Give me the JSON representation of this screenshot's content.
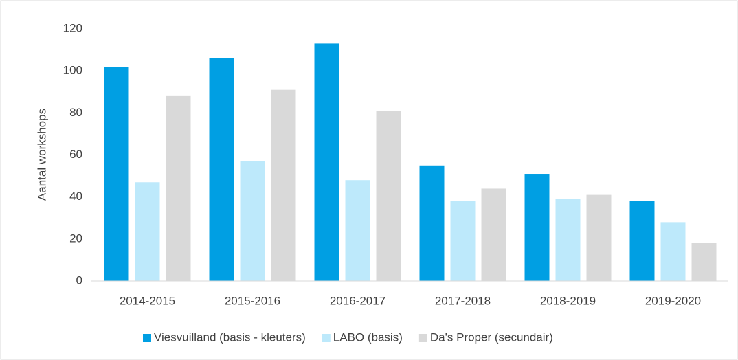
{
  "chart_data": {
    "type": "bar",
    "y_label": "Aantal workshops",
    "categories": [
      "2014-2015",
      "2015-2016",
      "2016-2017",
      "2017-2018",
      "2018-2019",
      "2019-2020"
    ],
    "series": [
      {
        "name": "Viesvuilland (basis - kleuters)",
        "color": "#009fe3",
        "values": [
          102,
          106,
          113,
          55,
          51,
          38
        ]
      },
      {
        "name": "LABO (basis)",
        "color": "#bde9fb",
        "values": [
          47,
          57,
          48,
          38,
          39,
          28
        ]
      },
      {
        "name": "Da's Proper (secundair)",
        "color": "#d9d9d9",
        "values": [
          88,
          91,
          81,
          44,
          41,
          18
        ]
      }
    ],
    "ylim": [
      0,
      120
    ],
    "yticks": [
      0,
      20,
      40,
      60,
      80,
      100,
      120
    ],
    "grid": false,
    "legend": "bottom"
  }
}
